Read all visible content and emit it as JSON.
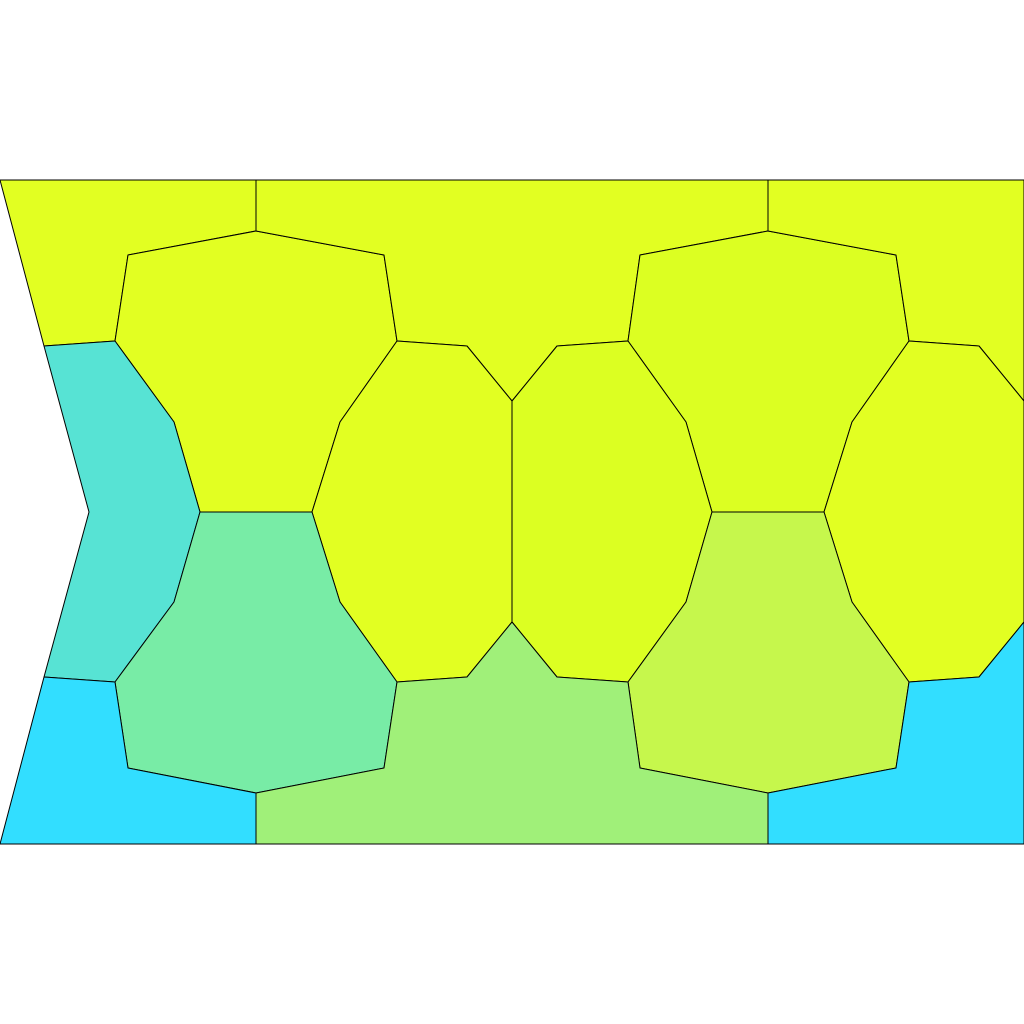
{
  "figure": {
    "description_text": "",
    "palette": {
      "yellow": "#E2FF22",
      "lime_yellow": "#DCFF22",
      "light_lime": "#C6F74C",
      "light_green": "#A0F079",
      "mint_green": "#78ECA6",
      "teal": "#57E3D4",
      "cyan": "#32DEFF"
    },
    "cells": [
      {
        "id": "top-left-corner",
        "color": "yellow"
      },
      {
        "id": "top-left-octagon",
        "color": "yellow"
      },
      {
        "id": "top-middle-region",
        "color": "yellow"
      },
      {
        "id": "top-right-octagon",
        "color": "lime_yellow"
      },
      {
        "id": "top-right-corner",
        "color": "yellow"
      },
      {
        "id": "center-left-octagon",
        "color": "yellow"
      },
      {
        "id": "center-octagon",
        "color": "lime_yellow"
      },
      {
        "id": "right-edge-octagon",
        "color": "yellow"
      },
      {
        "id": "left-teal-region",
        "color": "teal"
      },
      {
        "id": "lower-left-octagon",
        "color": "mint_green"
      },
      {
        "id": "lower-right-octagon",
        "color": "light_lime"
      },
      {
        "id": "bottom-middle-region",
        "color": "light_green"
      },
      {
        "id": "bottom-left-corner",
        "color": "cyan"
      },
      {
        "id": "bottom-right-corner",
        "color": "cyan"
      }
    ]
  }
}
